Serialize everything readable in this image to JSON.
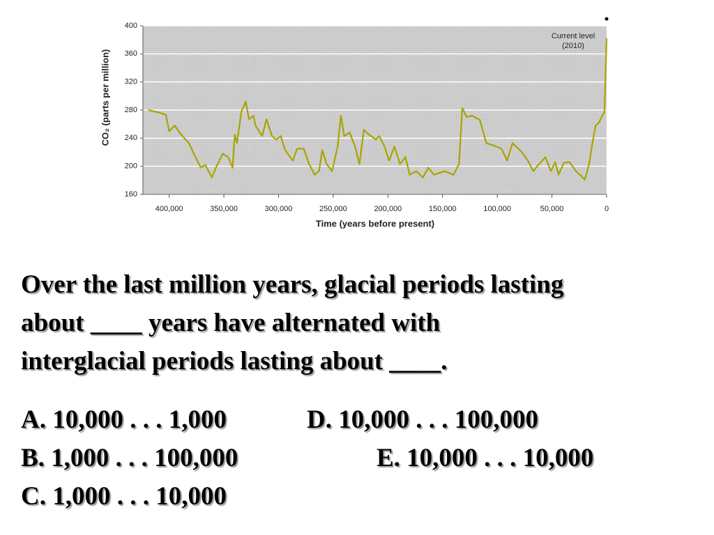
{
  "chart_data": {
    "type": "line",
    "ylabel": "CO₂ (parts per million)",
    "xlabel": "Time (years before present)",
    "annotation": [
      "Current level",
      "(2010)"
    ],
    "xlim": [
      424000,
      0
    ],
    "xticks": [
      {
        "value": 400000,
        "label": "400,000"
      },
      {
        "value": 350000,
        "label": "350,000"
      },
      {
        "value": 300000,
        "label": "300,000"
      },
      {
        "value": 250000,
        "label": "250,000"
      },
      {
        "value": 200000,
        "label": "200,000"
      },
      {
        "value": 150000,
        "label": "150,000"
      },
      {
        "value": 100000,
        "label": "100,000"
      },
      {
        "value": 50000,
        "label": "50,000"
      },
      0
    ],
    "ylim": [
      160,
      400
    ],
    "yticks": [
      160,
      200,
      240,
      280,
      320,
      360,
      400
    ],
    "grid": true,
    "color": "#a8a400",
    "x": [
      419000,
      408000,
      403000,
      400000,
      395000,
      389000,
      382000,
      376000,
      371000,
      367000,
      361000,
      357000,
      351000,
      346000,
      342000,
      340000,
      338000,
      334000,
      330000,
      327000,
      323000,
      321000,
      315000,
      311000,
      306000,
      302000,
      298000,
      294000,
      287000,
      283000,
      277000,
      272000,
      267000,
      263000,
      260000,
      256000,
      251000,
      246000,
      243000,
      240000,
      235000,
      230000,
      226000,
      222000,
      218000,
      211000,
      208000,
      203000,
      199000,
      194000,
      189000,
      184000,
      180000,
      174000,
      168000,
      163000,
      158000,
      148000,
      140000,
      135000,
      132000,
      128000,
      123000,
      116000,
      110000,
      104000,
      96000,
      91000,
      86000,
      78000,
      72000,
      67000,
      63000,
      56000,
      51000,
      47000,
      44000,
      39000,
      34000,
      28000,
      23000,
      20000,
      16000,
      13000,
      10000,
      7000,
      4000,
      2000,
      0
    ],
    "values": [
      280,
      276,
      273,
      250,
      258,
      245,
      233,
      213,
      198,
      202,
      184,
      199,
      218,
      213,
      198,
      245,
      233,
      278,
      292,
      267,
      272,
      258,
      243,
      267,
      243,
      238,
      243,
      223,
      208,
      225,
      225,
      203,
      188,
      193,
      223,
      203,
      193,
      228,
      272,
      243,
      248,
      228,
      203,
      252,
      246,
      238,
      243,
      228,
      208,
      228,
      203,
      213,
      188,
      193,
      184,
      198,
      188,
      193,
      188,
      203,
      283,
      270,
      272,
      266,
      233,
      230,
      225,
      208,
      233,
      221,
      208,
      193,
      201,
      213,
      193,
      206,
      188,
      205,
      206,
      193,
      186,
      181,
      203,
      233,
      258,
      262,
      272,
      277,
      382
    ]
  },
  "question_lines": [
    "Over the last million years, glacial periods lasting",
    "about ____ years have alternated with",
    "interglacial periods lasting about ____."
  ],
  "options": [
    "A. 10,000 . . . 1,000",
    "D. 10,000 . . . 100,000",
    "B. 1,000 . . . 100,000",
    "E. 10,000 . . . 10,000",
    "C. 1,000 . . . 10,000"
  ]
}
